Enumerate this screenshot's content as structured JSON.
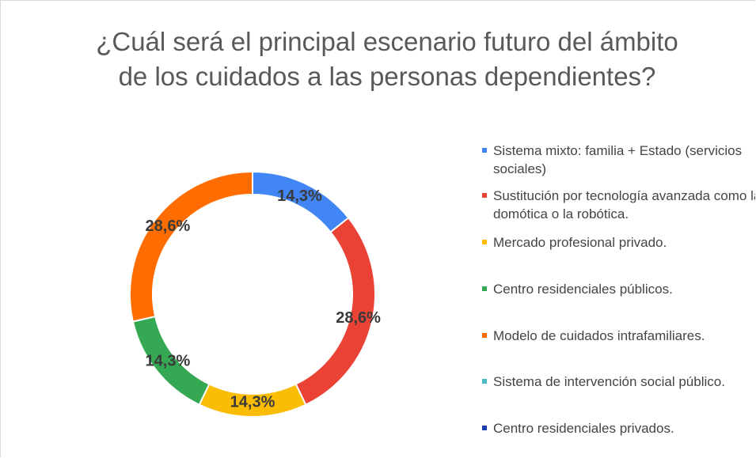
{
  "chart_data": {
    "type": "donut",
    "title": "¿Cuál será el principal escenario futuro del ámbito de los cuidados a las personas dependientes?",
    "categories": [
      "Sistema mixto: familia + Estado (servicios sociales)",
      "Sustitución por tecnología avanzada como la domótica o la robótica.",
      "Mercado profesional privado.",
      "Centro residenciales públicos.",
      "Modelo de cuidados intrafamiliares.",
      "Sistema de intervención social público.",
      "Centro residenciales privados."
    ],
    "values": [
      14.3,
      28.6,
      14.3,
      14.3,
      28.6,
      0,
      0
    ],
    "value_labels": [
      "14,3%",
      "28,6%",
      "14,3%",
      "14,3%",
      "28,6%",
      null,
      null
    ],
    "colors": [
      "#4285f4",
      "#ea4335",
      "#fbbc04",
      "#34a853",
      "#ff6d01",
      "#46bdc6",
      "#1a3fb0"
    ],
    "legend": "right"
  }
}
